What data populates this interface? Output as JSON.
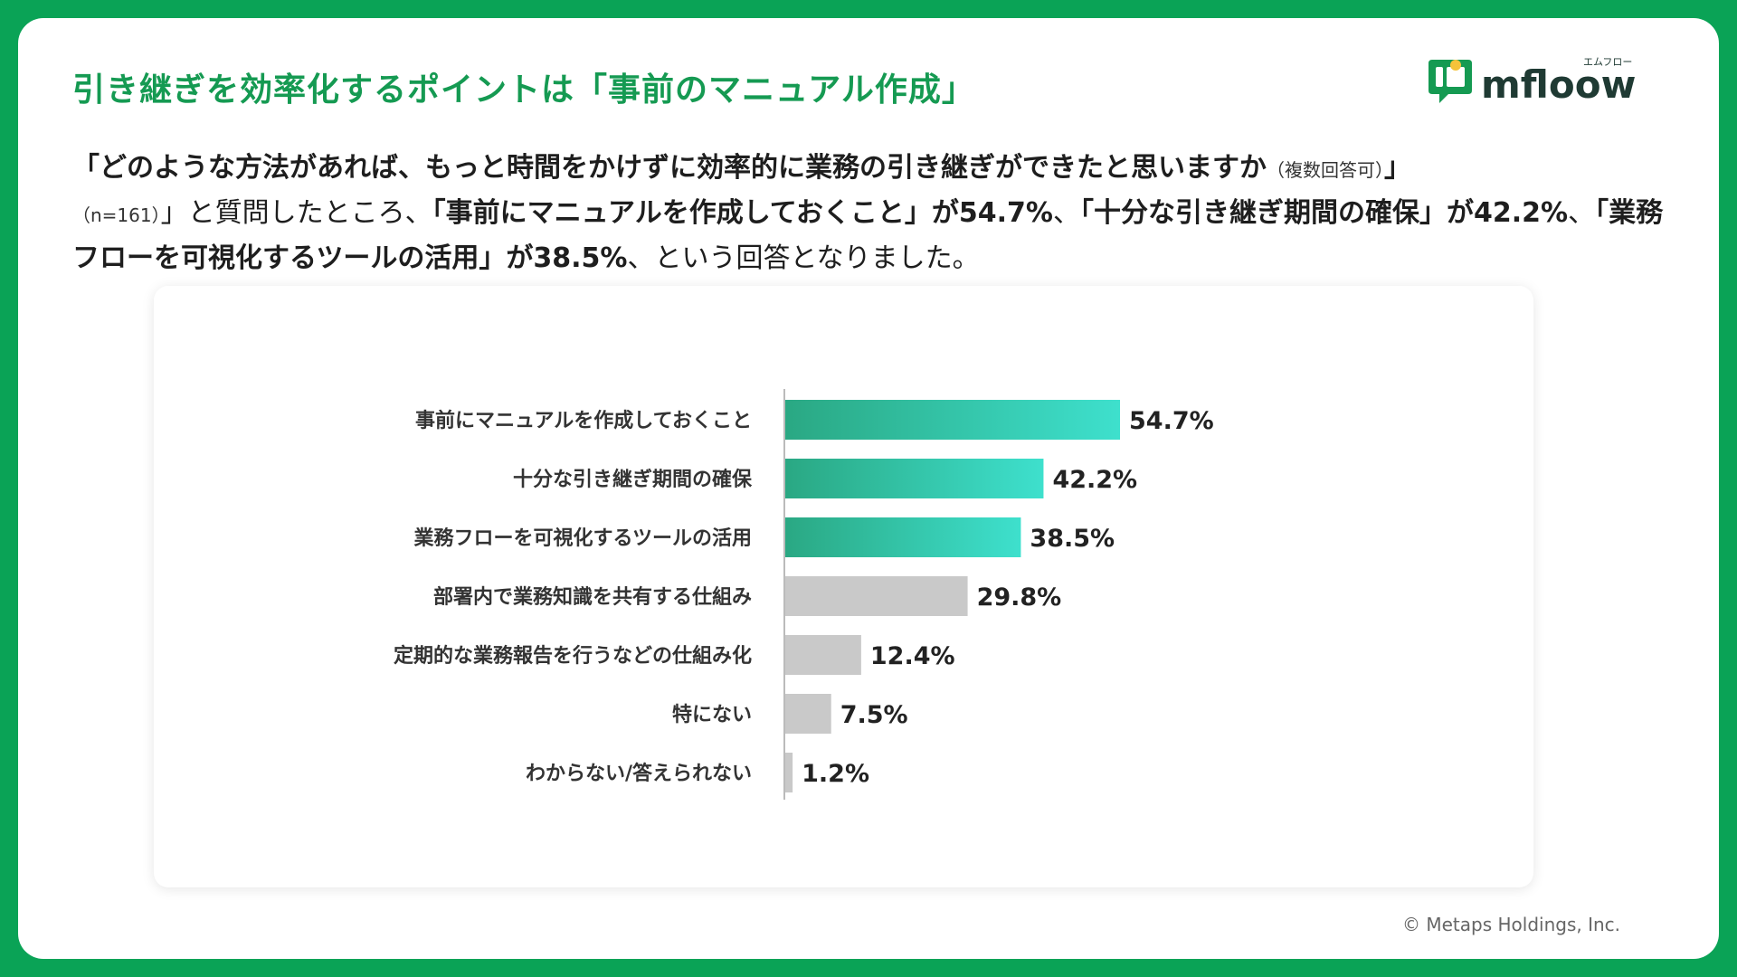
{
  "header": {
    "title": "引き継ぎを効率化するポイントは「事前のマニュアル作成」",
    "logo_text": "mfloow",
    "logo_kana": "エムフロー"
  },
  "description": {
    "q_open": "「どのような方法があれば、もっと時間をかけずに効率的に業務の引き継ぎができたと思いますか",
    "q_note": "（複数回答可）",
    "q_close": "」",
    "sample": "（n=161）",
    "p1": "」と質問したところ、",
    "h1": "「事前にマニュアルを作成しておくこと」が54.7%",
    "p2": "、",
    "h2": "「十分な引き継ぎ期間の確保」が42.2%",
    "p3": "、",
    "h3": "「業務フローを可視化するツールの活用」が38.5%",
    "p4": "、という回答となりました。"
  },
  "chart_data": {
    "type": "bar",
    "orientation": "horizontal",
    "categories": [
      "事前にマニュアルを作成しておくこと",
      "十分な引き継ぎ期間の確保",
      "業務フローを可視化するツールの活用",
      "部署内で業務知識を共有する仕組み",
      "定期的な業務報告を行うなどの仕組み化",
      "特にない",
      "わからない/答えられない"
    ],
    "values": [
      54.7,
      42.2,
      38.5,
      29.8,
      12.4,
      7.5,
      1.2
    ],
    "labels": [
      "54.7%",
      "42.2%",
      "38.5%",
      "29.8%",
      "12.4%",
      "7.5%",
      "1.2%"
    ],
    "highlight_count": 3,
    "colors": {
      "highlight_start": "#2aa883",
      "highlight_end": "#3ee0cd",
      "other": "#c9c9c9",
      "axis": "#bbbbbb",
      "label": "#333333"
    },
    "grid": false,
    "legend": "none"
  },
  "footer": {
    "copyright": "© Metaps Holdings, Inc."
  },
  "theme": {
    "background": "#0aa356",
    "title_color": "#159a52"
  }
}
